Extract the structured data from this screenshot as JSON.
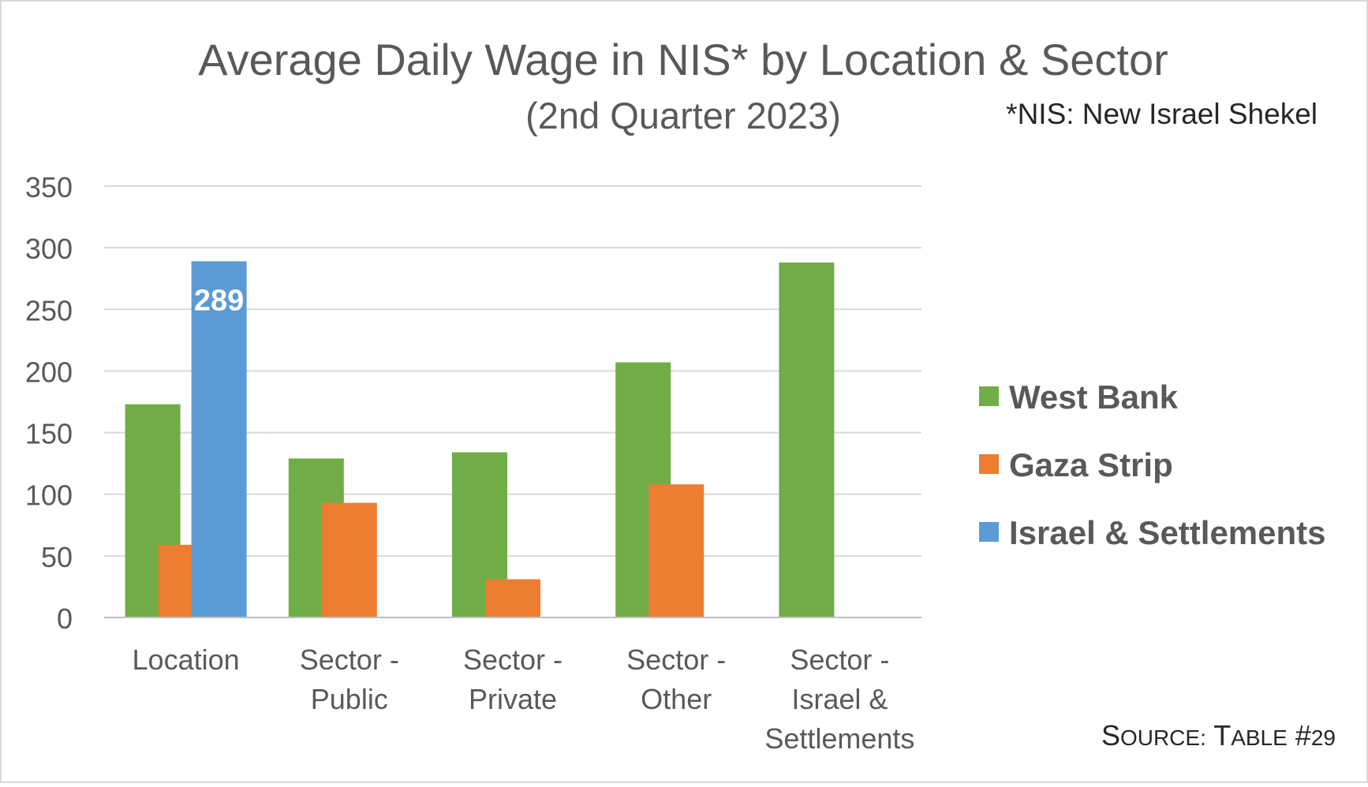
{
  "chart_data": {
    "type": "bar",
    "title": "Average Daily Wage in NIS* by Location & Sector",
    "subtitle": "(2nd Quarter 2023)",
    "note": "*NIS: New Israel Shekel",
    "source": "Source: Table #29",
    "xlabel": "",
    "ylabel": "",
    "ylim": [
      0,
      350
    ],
    "yticks": [
      0,
      50,
      100,
      150,
      200,
      250,
      300,
      350
    ],
    "grid": true,
    "legend_position": "right",
    "categories": [
      [
        "Location"
      ],
      [
        "Sector -",
        "Public"
      ],
      [
        "Sector -",
        "Private"
      ],
      [
        "Sector -",
        "Other"
      ],
      [
        "Sector -",
        "Israel &",
        "Settlements"
      ]
    ],
    "series": [
      {
        "name": "West Bank",
        "color": "#70ad47",
        "values": [
          173,
          129,
          134,
          207,
          288
        ]
      },
      {
        "name": "Gaza Strip",
        "color": "#ed7d31",
        "values": [
          59,
          93,
          31,
          108,
          null
        ]
      },
      {
        "name": "Israel & Settlements",
        "color": "#5b9bd5",
        "values": [
          289,
          null,
          null,
          null,
          null
        ]
      }
    ],
    "data_labels": [
      {
        "series": 2,
        "category": 0,
        "text": "289"
      }
    ]
  }
}
